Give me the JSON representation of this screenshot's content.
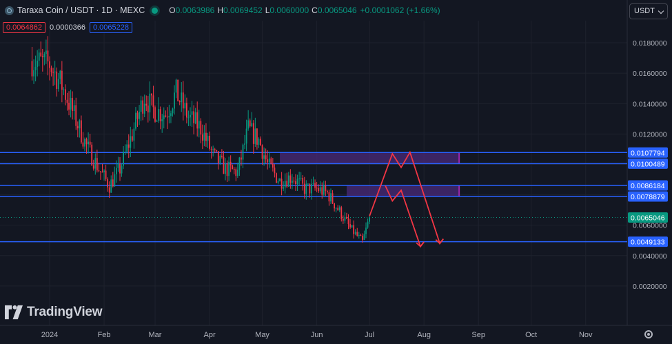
{
  "header": {
    "symbol_title": "Taraxa Coin / USDT · 1D · MEXC",
    "open_key": "O",
    "open": "0.0063986",
    "high_key": "H",
    "high": "0.0069452",
    "low_key": "L",
    "low": "0.0060000",
    "close_key": "C",
    "close": "0.0065046",
    "change": "+0.0001062 (+1.66%)"
  },
  "trade": {
    "sell_price": "0.0064862",
    "spread": "0.0000366",
    "buy_price": "0.0065228"
  },
  "currency_selector": "USDT",
  "branding": "TradingView",
  "colors": {
    "background": "#131722",
    "up": "#089981",
    "down": "#f23645",
    "hline": "#2962ff",
    "zone_fill": "#4a2a7a",
    "zone_border": "#9c27b0",
    "projection": "#f23645"
  },
  "chart_data": {
    "type": "candlestick",
    "symbol": "Taraxa Coin / USDT",
    "interval": "1D",
    "exchange": "MEXC",
    "x_tick_labels": [
      "2024",
      "Feb",
      "Mar",
      "Apr",
      "May",
      "Jun",
      "Jul",
      "Aug",
      "Sep",
      "Oct",
      "Nov"
    ],
    "x_tick_dates": [
      "2024-01-01",
      "2024-02-01",
      "2024-03-01",
      "2024-04-01",
      "2024-05-01",
      "2024-06-01",
      "2024-07-01",
      "2024-08-01",
      "2024-09-01",
      "2024-10-01",
      "2024-11-01"
    ],
    "y_ticks": [
      "0.0180000",
      "0.0160000",
      "0.0140000",
      "0.0120000",
      "0.0100000",
      "0.0080000",
      "0.0060000",
      "0.0040000",
      "0.0020000"
    ],
    "ylim": [
      0.0,
      0.019
    ],
    "price_path": [
      [
        "2023-12-22",
        0.0168
      ],
      [
        "2024-01-01",
        0.0166
      ],
      [
        "2024-01-08",
        0.0152
      ],
      [
        "2024-01-15",
        0.0132
      ],
      [
        "2024-01-22",
        0.0112
      ],
      [
        "2024-01-29",
        0.0097
      ],
      [
        "2024-02-04",
        0.0086
      ],
      [
        "2024-02-10",
        0.0097
      ],
      [
        "2024-02-17",
        0.012
      ],
      [
        "2024-02-24",
        0.0145
      ],
      [
        "2024-02-29",
        0.0136
      ],
      [
        "2024-03-07",
        0.0133
      ],
      [
        "2024-03-13",
        0.0147
      ],
      [
        "2024-03-20",
        0.0131
      ],
      [
        "2024-03-27",
        0.0124
      ],
      [
        "2024-04-03",
        0.0106
      ],
      [
        "2024-04-10",
        0.0097
      ],
      [
        "2024-04-17",
        0.0095
      ],
      [
        "2024-04-23",
        0.0123
      ],
      [
        "2024-04-29",
        0.0116
      ],
      [
        "2024-05-04",
        0.01
      ],
      [
        "2024-05-11",
        0.0089
      ],
      [
        "2024-05-18",
        0.0092
      ],
      [
        "2024-05-25",
        0.0084
      ],
      [
        "2024-06-01",
        0.0084
      ],
      [
        "2024-06-07",
        0.0081
      ],
      [
        "2024-06-14",
        0.0069
      ],
      [
        "2024-06-20",
        0.0058
      ],
      [
        "2024-06-27",
        0.0049
      ],
      [
        "2024-07-01",
        0.0065
      ]
    ],
    "last_price": "0.0065046",
    "horizontal_levels": [
      "0.0107794",
      "0.0100489",
      "0.0086184",
      "0.0078879",
      "0.0049133"
    ],
    "zones": [
      {
        "from": "2024-05-11",
        "to": "2024-08-21",
        "top": 0.0107794,
        "bottom": 0.0100489
      },
      {
        "from": "2024-06-18",
        "to": "2024-08-21",
        "top": 0.0086184,
        "bottom": 0.0078879
      }
    ],
    "projections": [
      [
        [
          "2024-07-01",
          0.0066
        ],
        [
          "2024-07-14",
          0.0107
        ],
        [
          "2024-07-19",
          0.0098
        ],
        [
          "2024-07-24",
          0.0108
        ],
        [
          "2024-08-10",
          0.0048
        ],
        [
          "2024-08-12",
          0.0051
        ]
      ],
      [
        [
          "2024-07-10",
          0.0086
        ],
        [
          "2024-07-14",
          0.0076
        ],
        [
          "2024-07-19",
          0.0083
        ],
        [
          "2024-07-30",
          0.0046
        ],
        [
          "2024-08-01",
          0.0049
        ]
      ]
    ]
  }
}
